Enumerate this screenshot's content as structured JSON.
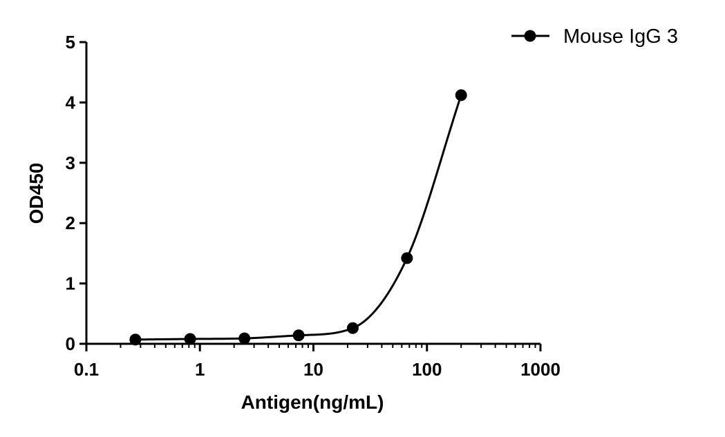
{
  "chart_data": {
    "type": "scatter",
    "xlabel": "Antigen(ng/mL)",
    "ylabel": "OD450",
    "xscale": "log",
    "xlim": [
      0.1,
      1000
    ],
    "ylim": [
      0,
      5
    ],
    "xticks": [
      0.1,
      1,
      10,
      100,
      1000
    ],
    "xtick_labels": [
      "0.1",
      "1",
      "10",
      "100",
      "1000"
    ],
    "yticks": [
      0,
      1,
      2,
      3,
      4,
      5
    ],
    "ytick_labels": [
      "0",
      "1",
      "2",
      "3",
      "4",
      "5"
    ],
    "grid": false,
    "legend": "top-right",
    "fit_line": true,
    "series": [
      {
        "name": "Mouse IgG 3",
        "color": "#000000",
        "marker": "circle",
        "x": [
          0.27,
          0.82,
          2.47,
          7.41,
          22.2,
          66.7,
          200
        ],
        "y": [
          0.07,
          0.08,
          0.09,
          0.14,
          0.26,
          1.42,
          4.12
        ]
      }
    ]
  }
}
